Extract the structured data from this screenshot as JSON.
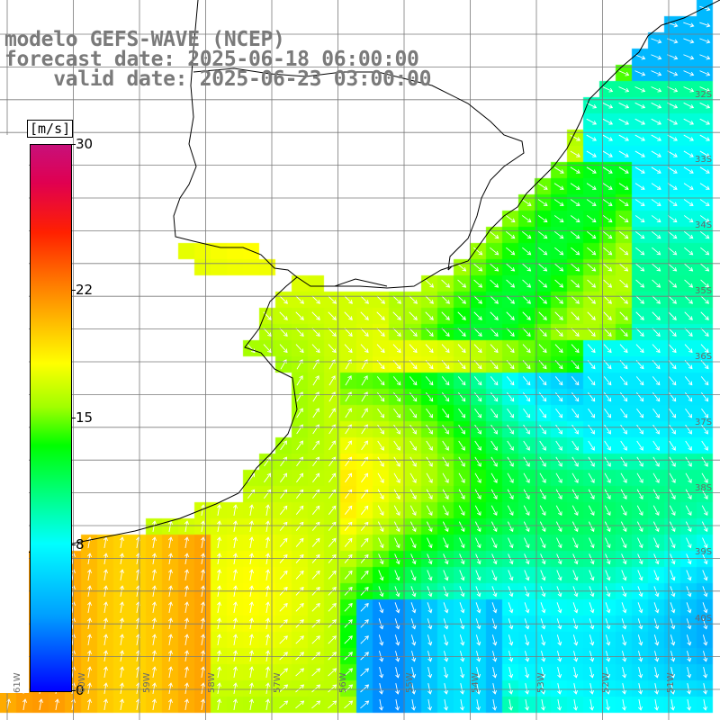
{
  "title": {
    "line1": "modelo GEFS-WAVE (NCEP)",
    "line2": "forecast date: 2025-06-18 06:00:00",
    "line3": "    valid date: 2025-06-23 03:00:00"
  },
  "colorbar": {
    "unit": "[m/s]",
    "ticks": [
      "30",
      "22",
      "15",
      "8",
      "0"
    ],
    "tick_values": [
      30,
      22,
      15,
      8,
      0
    ],
    "min": 0,
    "max": 30
  },
  "map": {
    "lat_labels": [
      "32S",
      "33S",
      "34S",
      "35S",
      "36S",
      "37S",
      "38S",
      "39S",
      "40S"
    ],
    "lon_labels": [
      "61W",
      "60W",
      "59W",
      "58W",
      "57W",
      "56W",
      "55W",
      "54W",
      "53W",
      "52W",
      "51W"
    ],
    "colors": {
      "ocean_grid": "#808080",
      "land": "#ffffff",
      "coast": "#000000",
      "arrows": "#ffffff",
      "label": "#777777"
    }
  }
}
